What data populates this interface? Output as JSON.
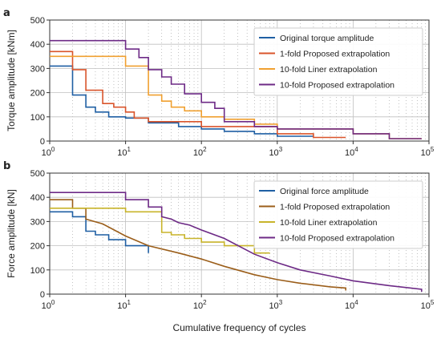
{
  "colors": {
    "blue": "#1f5fa3",
    "red": "#d9542b",
    "orange": "#f0a030",
    "purple": "#6d2a86",
    "brown": "#9b5e1a",
    "olive": "#c8b42a",
    "grid_major": "#bfbfbf",
    "grid_minor": "#9a9a9a"
  },
  "chart_data": [
    {
      "panel_label": "a",
      "type": "line",
      "ylabel": "Torque amplitude [kNm]",
      "xlabel": "",
      "xscale": "log",
      "xlim": [
        1,
        100000
      ],
      "ylim": [
        0,
        500
      ],
      "yticks": [
        0,
        100,
        200,
        300,
        400,
        500
      ],
      "xticks": [
        {
          "value": 1,
          "base": "10",
          "exp": "0"
        },
        {
          "value": 10,
          "base": "10",
          "exp": "1"
        },
        {
          "value": 100,
          "base": "10",
          "exp": "2"
        },
        {
          "value": 1000,
          "base": "10",
          "exp": "3"
        },
        {
          "value": 10000,
          "base": "10",
          "exp": "4"
        },
        {
          "value": 100000,
          "base": "10",
          "exp": "5"
        }
      ],
      "grid": true,
      "legend_position": "top-right",
      "series": [
        {
          "name": "Original torque amplitude",
          "color_key": "blue",
          "x": [
            1,
            2,
            2,
            3,
            3,
            4,
            4,
            6,
            6,
            10,
            10,
            20,
            20,
            50,
            50,
            100,
            100,
            200,
            200,
            500,
            500,
            1000,
            1000,
            3000
          ],
          "y": [
            310,
            310,
            190,
            190,
            140,
            140,
            120,
            120,
            100,
            100,
            95,
            95,
            75,
            75,
            60,
            60,
            50,
            50,
            40,
            40,
            30,
            30,
            20,
            20
          ]
        },
        {
          "name": "1-fold Proposed extrapolation",
          "color_key": "red",
          "x": [
            1,
            2,
            2,
            3,
            3,
            5,
            5,
            7,
            7,
            10,
            10,
            13,
            13,
            20,
            20,
            100,
            100,
            1000,
            1000,
            3000,
            3000,
            8000
          ],
          "y": [
            370,
            370,
            295,
            295,
            210,
            210,
            155,
            155,
            140,
            140,
            120,
            120,
            95,
            95,
            80,
            80,
            60,
            60,
            30,
            30,
            15,
            15
          ]
        },
        {
          "name": "10-fold Liner extrapolation",
          "color_key": "orange",
          "x": [
            1,
            10,
            10,
            20,
            20,
            30,
            30,
            40,
            40,
            60,
            60,
            100,
            100,
            200,
            200,
            500,
            500,
            1000,
            1000,
            10000,
            10000,
            30000,
            30000,
            80000
          ],
          "y": [
            350,
            350,
            310,
            310,
            190,
            190,
            165,
            165,
            140,
            140,
            125,
            125,
            100,
            100,
            90,
            90,
            70,
            70,
            50,
            50,
            30,
            30,
            10,
            10
          ]
        },
        {
          "name": "10-fold Proposed extrapolation",
          "color_key": "purple",
          "x": [
            1,
            10,
            10,
            15,
            15,
            20,
            20,
            30,
            30,
            40,
            40,
            60,
            60,
            100,
            100,
            150,
            150,
            200,
            200,
            500,
            500,
            1000,
            1000,
            10000,
            10000,
            30000,
            30000,
            80000
          ],
          "y": [
            415,
            415,
            380,
            380,
            345,
            345,
            295,
            295,
            265,
            265,
            235,
            235,
            195,
            195,
            160,
            160,
            135,
            135,
            80,
            80,
            60,
            60,
            50,
            50,
            30,
            30,
            10,
            10
          ]
        }
      ]
    },
    {
      "panel_label": "b",
      "type": "line",
      "ylabel": "Force amplitude [kN]",
      "xlabel": "Cumulative frequency of cycles",
      "xscale": "log",
      "xlim": [
        1,
        100000
      ],
      "ylim": [
        0,
        500
      ],
      "yticks": [
        0,
        100,
        200,
        300,
        400,
        500
      ],
      "xticks": [
        {
          "value": 1,
          "base": "10",
          "exp": "0"
        },
        {
          "value": 10,
          "base": "10",
          "exp": "1"
        },
        {
          "value": 100,
          "base": "10",
          "exp": "2"
        },
        {
          "value": 1000,
          "base": "10",
          "exp": "3"
        },
        {
          "value": 10000,
          "base": "10",
          "exp": "4"
        },
        {
          "value": 100000,
          "base": "10",
          "exp": "5"
        }
      ],
      "grid": true,
      "legend_position": "top-right",
      "series": [
        {
          "name": "Original force amplitude",
          "color_key": "blue",
          "x": [
            1,
            2,
            2,
            3,
            3,
            4,
            4,
            6,
            6,
            10,
            10,
            20,
            20
          ],
          "y": [
            340,
            340,
            320,
            320,
            260,
            260,
            245,
            245,
            225,
            225,
            200,
            200,
            170
          ]
        },
        {
          "name": "1-fold Proposed extrapolation",
          "color_key": "brown",
          "x": [
            1,
            2,
            2,
            3,
            3,
            5,
            10,
            20,
            50,
            100,
            200,
            500,
            1000,
            2000,
            5000,
            8000,
            8000
          ],
          "y": [
            390,
            390,
            355,
            355,
            310,
            290,
            240,
            200,
            170,
            145,
            115,
            80,
            60,
            45,
            30,
            25,
            15
          ]
        },
        {
          "name": "10-fold Liner extrapolation",
          "color_key": "olive",
          "x": [
            1,
            10,
            10,
            30,
            30,
            40,
            40,
            60,
            60,
            100,
            100,
            200,
            200,
            500,
            500,
            800
          ],
          "y": [
            355,
            355,
            340,
            340,
            255,
            255,
            245,
            245,
            230,
            230,
            215,
            215,
            200,
            200,
            170,
            170
          ]
        },
        {
          "name": "10-fold Proposed extrapolation",
          "color_key": "purple",
          "x": [
            1,
            10,
            10,
            20,
            20,
            30,
            30,
            40,
            50,
            70,
            100,
            200,
            500,
            1000,
            2000,
            5000,
            10000,
            30000,
            80000,
            80000
          ],
          "y": [
            420,
            420,
            390,
            390,
            360,
            360,
            320,
            310,
            295,
            285,
            265,
            230,
            165,
            130,
            100,
            75,
            55,
            35,
            20,
            10
          ]
        }
      ]
    }
  ]
}
